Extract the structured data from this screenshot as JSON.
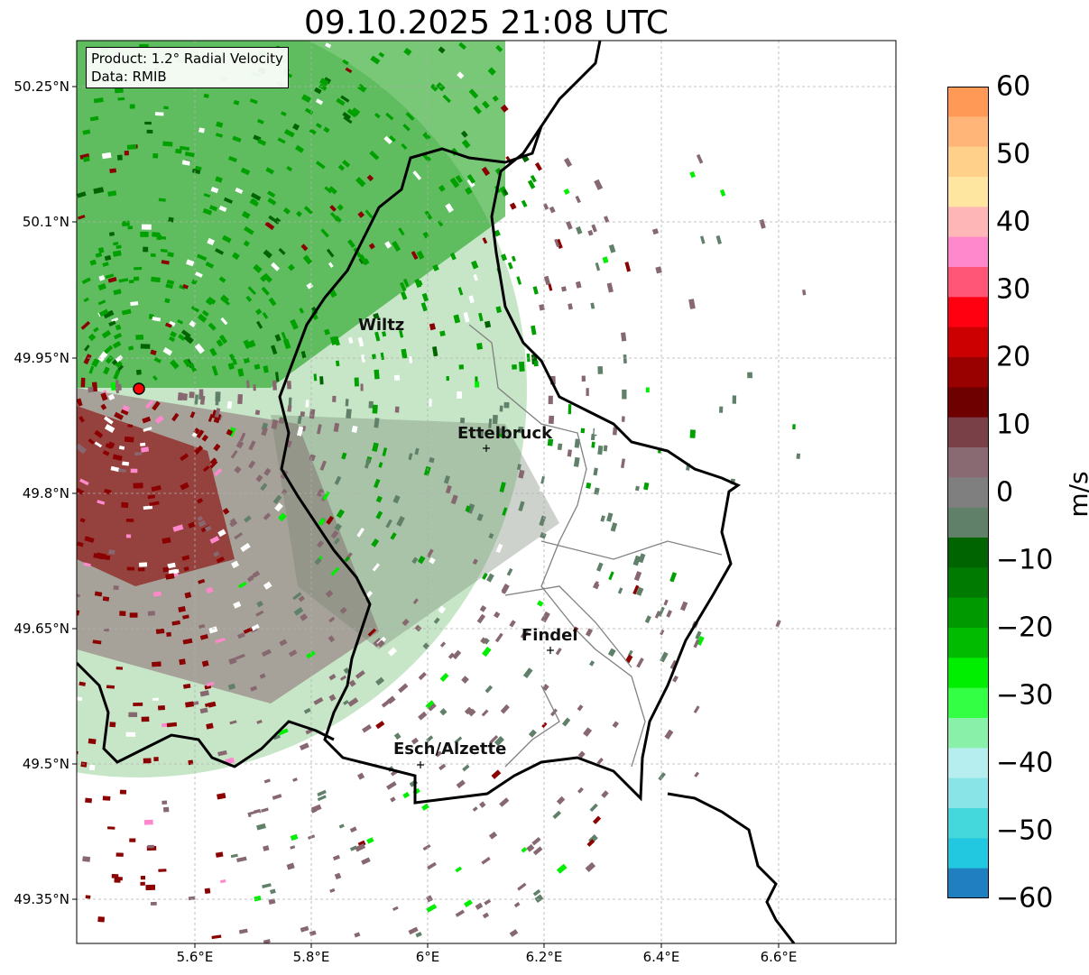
{
  "title": "09.10.2025 21:08 UTC",
  "info": {
    "product": "Product: 1.2° Radial Velocity",
    "data_source": "Data: RMIB"
  },
  "lat_labels": [
    "50.25°N",
    "50.1°N",
    "49.95°N",
    "49.8°N",
    "49.65°N",
    "49.5°N",
    "49.35°N"
  ],
  "lon_labels": [
    "5.6°E",
    "5.8°E",
    "6°E",
    "6.2°E",
    "6.4°E",
    "6.6°E"
  ],
  "cities": [
    {
      "name": "Wiltz"
    },
    {
      "name": "Ettelbruck"
    },
    {
      "name": "Findel"
    },
    {
      "name": "Esch/Alzette"
    }
  ],
  "colorbar": {
    "unit": "m/s",
    "min": -60,
    "max": 60,
    "ticks": [
      "60",
      "50",
      "40",
      "30",
      "20",
      "10",
      "0",
      "−10",
      "−20",
      "−30",
      "−40",
      "−50",
      "−60"
    ],
    "colors_top_to_bottom": [
      "#ff9955",
      "#ffb577",
      "#ffd08a",
      "#ffe6a0",
      "#ffb6b6",
      "#ff88cc",
      "#ff5577",
      "#ff0010",
      "#cc0000",
      "#990000",
      "#6e0000",
      "#7a4048",
      "#8a6a72",
      "#7f7f7f",
      "#60806a",
      "#006400",
      "#007a00",
      "#009900",
      "#00bb00",
      "#00ee00",
      "#33ff44",
      "#88f0a8",
      "#b6eef0",
      "#88e4e6",
      "#44d8dc",
      "#22c8e0",
      "#1f7fc0"
    ]
  },
  "colors": {
    "inbound_strong": "#00a000",
    "outbound": "#8b0000",
    "near_zero": "#876870",
    "radar_site": "#ff0000"
  }
}
